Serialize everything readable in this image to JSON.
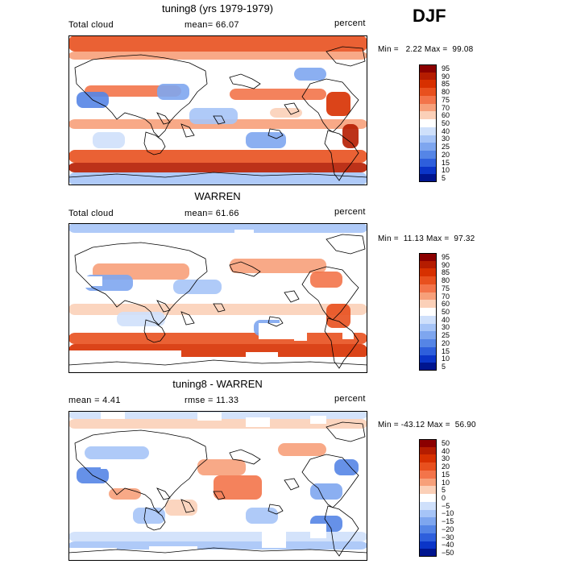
{
  "season": "DJF",
  "panels": [
    {
      "title": "tuning8 (yrs 1979-1979)",
      "left_label": "Total cloud",
      "center_label": "mean=  66.07",
      "right_label": "percent",
      "stats": "Min =   2.22 Max =  99.08",
      "colorbar_ticks": [
        "95",
        "90",
        "85",
        "80",
        "75",
        "70",
        "60",
        "50",
        "40",
        "30",
        "25",
        "20",
        "15",
        "10",
        "5"
      ],
      "colors": [
        "#8b0000",
        "#b51c00",
        "#d73000",
        "#e8501e",
        "#f3744a",
        "#f7a07a",
        "#fbd0b8",
        "#ffffff",
        "#cfe0fb",
        "#a6c4f7",
        "#7ea6ef",
        "#5585e6",
        "#2e5fdc",
        "#0b35c8",
        "#00158f"
      ],
      "map_type": "cloud-full"
    },
    {
      "title": "WARREN",
      "left_label": "Total cloud",
      "center_label": "mean=  61.66",
      "right_label": "percent",
      "stats": "Min =  11.13 Max =  97.32",
      "colorbar_ticks": [
        "95",
        "90",
        "85",
        "80",
        "75",
        "70",
        "60",
        "50",
        "40",
        "30",
        "25",
        "20",
        "15",
        "10",
        "5"
      ],
      "colors": [
        "#8b0000",
        "#b51c00",
        "#d73000",
        "#e8501e",
        "#f3744a",
        "#f7a07a",
        "#fbd0b8",
        "#ffffff",
        "#cfe0fb",
        "#a6c4f7",
        "#7ea6ef",
        "#5585e6",
        "#2e5fdc",
        "#0b35c8",
        "#00158f"
      ],
      "map_type": "cloud-gaps"
    },
    {
      "title": "tuning8 - WARREN",
      "left_label": "mean =   4.41",
      "center_label": "rmse =  11.33",
      "right_label": "percent",
      "stats": "Min = -43.12 Max =  56.90",
      "colorbar_ticks": [
        "50",
        "40",
        "30",
        "20",
        "15",
        "10",
        "5",
        "0",
        "−5",
        "−10",
        "−15",
        "−20",
        "−30",
        "−40",
        "−50"
      ],
      "colors": [
        "#8b0000",
        "#b51c00",
        "#d73000",
        "#e8501e",
        "#f3744a",
        "#f7a07a",
        "#fbd0b8",
        "#ffffff",
        "#cfe0fb",
        "#a6c4f7",
        "#7ea6ef",
        "#5585e6",
        "#2e5fdc",
        "#0b35c8",
        "#00158f"
      ],
      "map_type": "difference"
    }
  ]
}
